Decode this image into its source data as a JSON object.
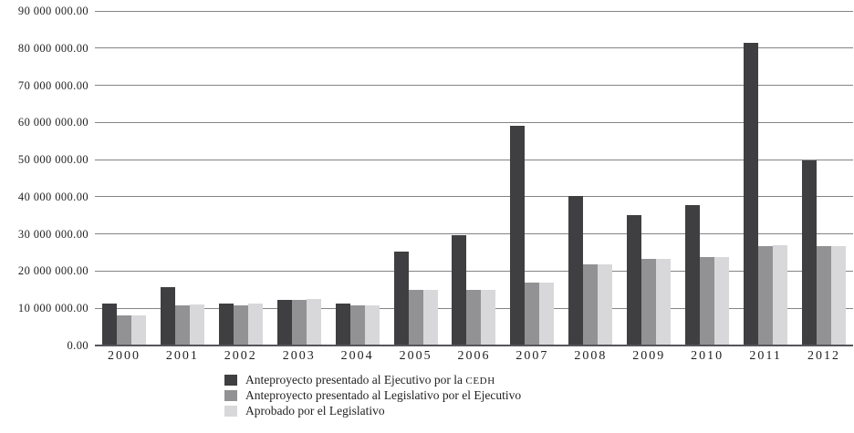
{
  "chart_data": {
    "type": "bar",
    "title": "",
    "xlabel": "",
    "ylabel": "",
    "categories": [
      "2000",
      "2001",
      "2002",
      "2003",
      "2004",
      "2005",
      "2006",
      "2007",
      "2008",
      "2009",
      "2010",
      "2011",
      "2012"
    ],
    "series": [
      {
        "name": "Anteproyecto presentado al Ejecutivo por la CEDH",
        "color": "#3f3f41",
        "values": [
          11300000,
          15600000,
          11200000,
          12300000,
          11400000,
          25300000,
          29600000,
          59000000,
          40200000,
          35000000,
          37800000,
          81300000,
          49700000
        ]
      },
      {
        "name": "Anteproyecto presentado al Legislativo por el Ejecutivo",
        "color": "#929294",
        "values": [
          8200000,
          10800000,
          10900000,
          12300000,
          10900000,
          14900000,
          14900000,
          16900000,
          21800000,
          23200000,
          23700000,
          26800000,
          26700000
        ]
      },
      {
        "name": "Aprobado por el Legislativo",
        "color": "#d8d8da",
        "values": [
          8100000,
          11000000,
          11200000,
          12400000,
          10900000,
          14900000,
          14900000,
          17000000,
          21800000,
          23200000,
          23800000,
          26900000,
          26800000
        ]
      }
    ],
    "ylim": [
      0,
      90000000
    ],
    "grid": true,
    "legend_position": "bottom",
    "yticks": [
      {
        "value": 0,
        "label": "0.00"
      },
      {
        "value": 10000000,
        "label": "10 000 000.00"
      },
      {
        "value": 20000000,
        "label": "20 000 000.00"
      },
      {
        "value": 30000000,
        "label": "30 000 000.00"
      },
      {
        "value": 40000000,
        "label": "40 000 000.00"
      },
      {
        "value": 50000000,
        "label": "50 000 000.00"
      },
      {
        "value": 60000000,
        "label": "60 000 000.00"
      },
      {
        "value": 70000000,
        "label": "70 000 000.00"
      },
      {
        "value": 80000000,
        "label": "80 000 000.00"
      },
      {
        "value": 90000000,
        "label": "90 000 000.00"
      }
    ],
    "legend": [
      {
        "prefix": "Anteproyecto presentado al Ejecutivo por la ",
        "acronym": "CEDH"
      },
      {
        "prefix": "Anteproyecto presentado al Legislativo por el Ejecutivo",
        "acronym": ""
      },
      {
        "prefix": "Aprobado por el Legislativo",
        "acronym": ""
      }
    ]
  }
}
